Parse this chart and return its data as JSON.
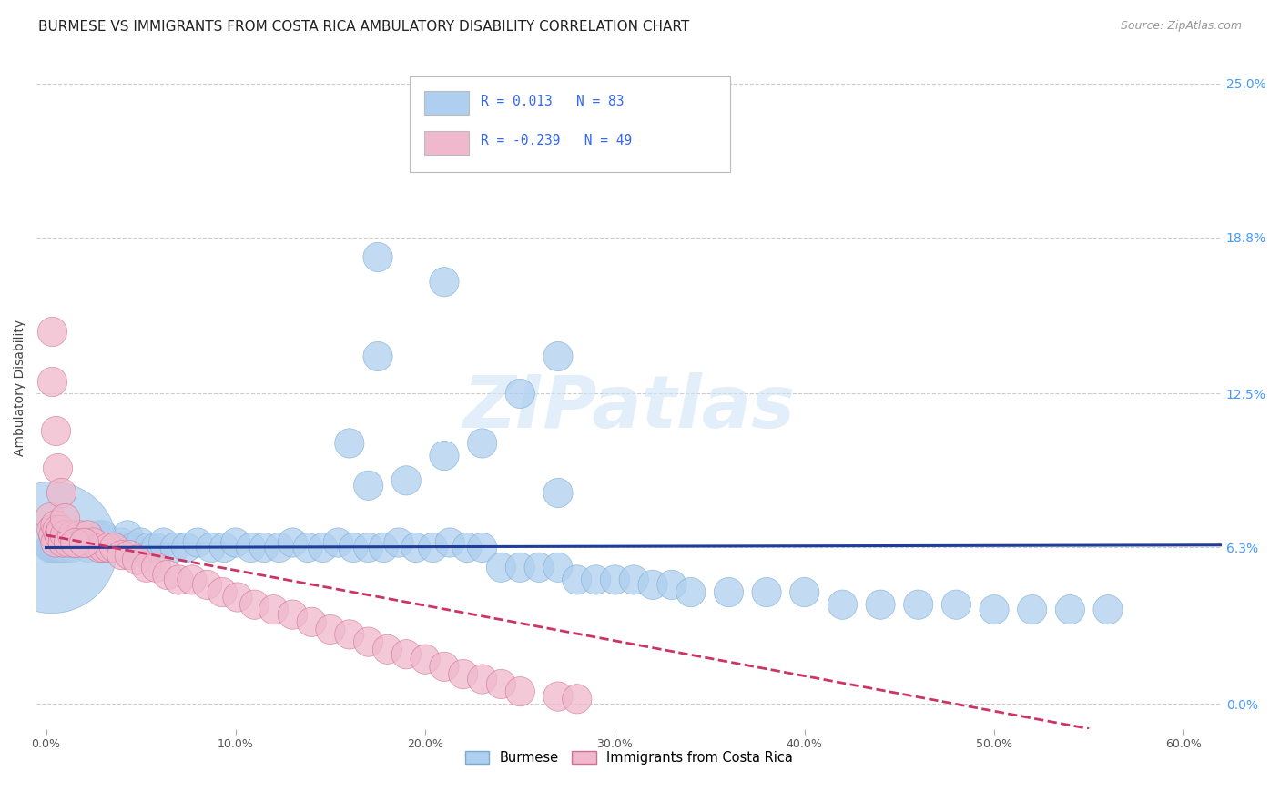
{
  "title": "BURMESE VS IMMIGRANTS FROM COSTA RICA AMBULATORY DISABILITY CORRELATION CHART",
  "source": "Source: ZipAtlas.com",
  "ylabel": "Ambulatory Disability",
  "xlabel_ticks": [
    "0.0%",
    "10.0%",
    "20.0%",
    "30.0%",
    "40.0%",
    "50.0%",
    "60.0%"
  ],
  "xlabel_vals": [
    0.0,
    0.1,
    0.2,
    0.3,
    0.4,
    0.5,
    0.6
  ],
  "ylabel_ticks": [
    "0.0%",
    "6.3%",
    "12.5%",
    "18.8%",
    "25.0%"
  ],
  "ylabel_vals": [
    0.0,
    0.063,
    0.125,
    0.188,
    0.25
  ],
  "xlim": [
    -0.005,
    0.62
  ],
  "ylim": [
    -0.01,
    0.265
  ],
  "plot_ylim": [
    0.0,
    0.25
  ],
  "watermark": "ZIPatlas",
  "legend_entries": [
    {
      "label": "Burmese",
      "R": "0.013",
      "N": "83",
      "color": "#aecfef"
    },
    {
      "label": "Immigrants from Costa Rica",
      "R": "-0.239",
      "N": "49",
      "color": "#f0b8cc"
    }
  ],
  "blue_x": [
    0.002,
    0.002,
    0.003,
    0.004,
    0.004,
    0.005,
    0.005,
    0.006,
    0.006,
    0.007,
    0.008,
    0.009,
    0.01,
    0.012,
    0.014,
    0.016,
    0.018,
    0.02,
    0.022,
    0.025,
    0.028,
    0.03,
    0.032,
    0.035,
    0.038,
    0.04,
    0.043,
    0.046,
    0.05,
    0.054,
    0.058,
    0.062,
    0.068,
    0.074,
    0.08,
    0.087,
    0.094,
    0.1,
    0.108,
    0.115,
    0.123,
    0.13,
    0.138,
    0.146,
    0.154,
    0.162,
    0.17,
    0.178,
    0.186,
    0.195,
    0.204,
    0.213,
    0.222,
    0.23,
    0.24,
    0.25,
    0.26,
    0.27,
    0.28,
    0.29,
    0.3,
    0.31,
    0.32,
    0.33,
    0.34,
    0.36,
    0.38,
    0.4,
    0.42,
    0.44,
    0.46,
    0.48,
    0.5,
    0.52,
    0.54,
    0.56,
    0.17,
    0.19,
    0.21,
    0.23,
    0.25,
    0.27
  ],
  "blue_y": [
    0.063,
    0.063,
    0.063,
    0.063,
    0.063,
    0.063,
    0.063,
    0.063,
    0.063,
    0.063,
    0.063,
    0.063,
    0.063,
    0.063,
    0.063,
    0.065,
    0.065,
    0.065,
    0.063,
    0.065,
    0.068,
    0.068,
    0.063,
    0.063,
    0.063,
    0.065,
    0.068,
    0.063,
    0.065,
    0.063,
    0.063,
    0.065,
    0.063,
    0.063,
    0.065,
    0.063,
    0.063,
    0.065,
    0.063,
    0.063,
    0.063,
    0.065,
    0.063,
    0.063,
    0.065,
    0.063,
    0.063,
    0.063,
    0.065,
    0.063,
    0.063,
    0.065,
    0.063,
    0.063,
    0.055,
    0.055,
    0.055,
    0.055,
    0.05,
    0.05,
    0.05,
    0.05,
    0.048,
    0.048,
    0.045,
    0.045,
    0.045,
    0.045,
    0.04,
    0.04,
    0.04,
    0.04,
    0.038,
    0.038,
    0.038,
    0.038,
    0.088,
    0.09,
    0.1,
    0.105,
    0.125,
    0.14
  ],
  "blue_sizes": [
    30,
    30,
    30,
    30,
    30,
    30,
    30,
    30,
    30,
    30,
    30,
    30,
    30,
    30,
    30,
    30,
    30,
    30,
    30,
    30,
    30,
    30,
    30,
    30,
    30,
    30,
    30,
    30,
    30,
    30,
    30,
    30,
    30,
    30,
    30,
    30,
    30,
    30,
    30,
    30,
    30,
    30,
    30,
    30,
    30,
    30,
    30,
    30,
    30,
    30,
    30,
    30,
    30,
    30,
    30,
    30,
    30,
    30,
    30,
    30,
    30,
    30,
    30,
    30,
    30,
    30,
    30,
    30,
    30,
    30,
    30,
    30,
    30,
    30,
    30,
    30,
    30,
    30,
    30,
    30,
    30,
    30
  ],
  "blue_extra_x": [
    0.003,
    0.21,
    0.175,
    0.27,
    0.16,
    0.175
  ],
  "blue_extra_y": [
    0.063,
    0.17,
    0.14,
    0.085,
    0.105,
    0.18
  ],
  "blue_extra_sizes": [
    600,
    30,
    30,
    30,
    30,
    30
  ],
  "pink_x": [
    0.002,
    0.003,
    0.004,
    0.005,
    0.005,
    0.006,
    0.007,
    0.008,
    0.009,
    0.01,
    0.012,
    0.014,
    0.016,
    0.018,
    0.02,
    0.022,
    0.025,
    0.028,
    0.03,
    0.033,
    0.036,
    0.04,
    0.044,
    0.048,
    0.053,
    0.058,
    0.064,
    0.07,
    0.077,
    0.085,
    0.093,
    0.101,
    0.11,
    0.12,
    0.13,
    0.14,
    0.15,
    0.16,
    0.17,
    0.18,
    0.19,
    0.2,
    0.21,
    0.22,
    0.23,
    0.24,
    0.25,
    0.27,
    0.28
  ],
  "pink_y": [
    0.075,
    0.07,
    0.068,
    0.072,
    0.065,
    0.07,
    0.068,
    0.07,
    0.065,
    0.068,
    0.065,
    0.068,
    0.065,
    0.068,
    0.065,
    0.068,
    0.065,
    0.063,
    0.063,
    0.063,
    0.063,
    0.06,
    0.06,
    0.058,
    0.055,
    0.055,
    0.052,
    0.05,
    0.05,
    0.048,
    0.045,
    0.043,
    0.04,
    0.038,
    0.036,
    0.033,
    0.03,
    0.028,
    0.025,
    0.022,
    0.02,
    0.018,
    0.015,
    0.012,
    0.01,
    0.008,
    0.005,
    0.003,
    0.002
  ],
  "pink_extra_x": [
    0.003,
    0.003,
    0.005,
    0.006,
    0.008,
    0.01,
    0.015,
    0.02
  ],
  "pink_extra_y": [
    0.15,
    0.13,
    0.11,
    0.095,
    0.085,
    0.075,
    0.065,
    0.065
  ],
  "pink_sizes": [
    30,
    30,
    30,
    30,
    30,
    30,
    30,
    30,
    30,
    30,
    30,
    30,
    30,
    30,
    30,
    30,
    30,
    30,
    30,
    30,
    30,
    30,
    30,
    30,
    30,
    30,
    30,
    30,
    30,
    30,
    30,
    30,
    30,
    30,
    30,
    30,
    30,
    30,
    30,
    30,
    30,
    30,
    30,
    30,
    30,
    30,
    30,
    30,
    30
  ],
  "blue_trend_x": [
    0.0,
    0.62
  ],
  "blue_trend_y": [
    0.063,
    0.064
  ],
  "pink_trend_x": [
    0.0,
    0.55
  ],
  "pink_trend_y": [
    0.068,
    -0.01
  ],
  "blue_color": "#aecfef",
  "blue_edge": "#7aaad0",
  "pink_color": "#f0b8cc",
  "pink_edge": "#d07090",
  "blue_line_color": "#1f3d99",
  "pink_line_color": "#cc3366",
  "background_color": "#ffffff",
  "grid_color": "#cccccc",
  "title_fontsize": 11,
  "tick_label_color_right": "#4499ff"
}
